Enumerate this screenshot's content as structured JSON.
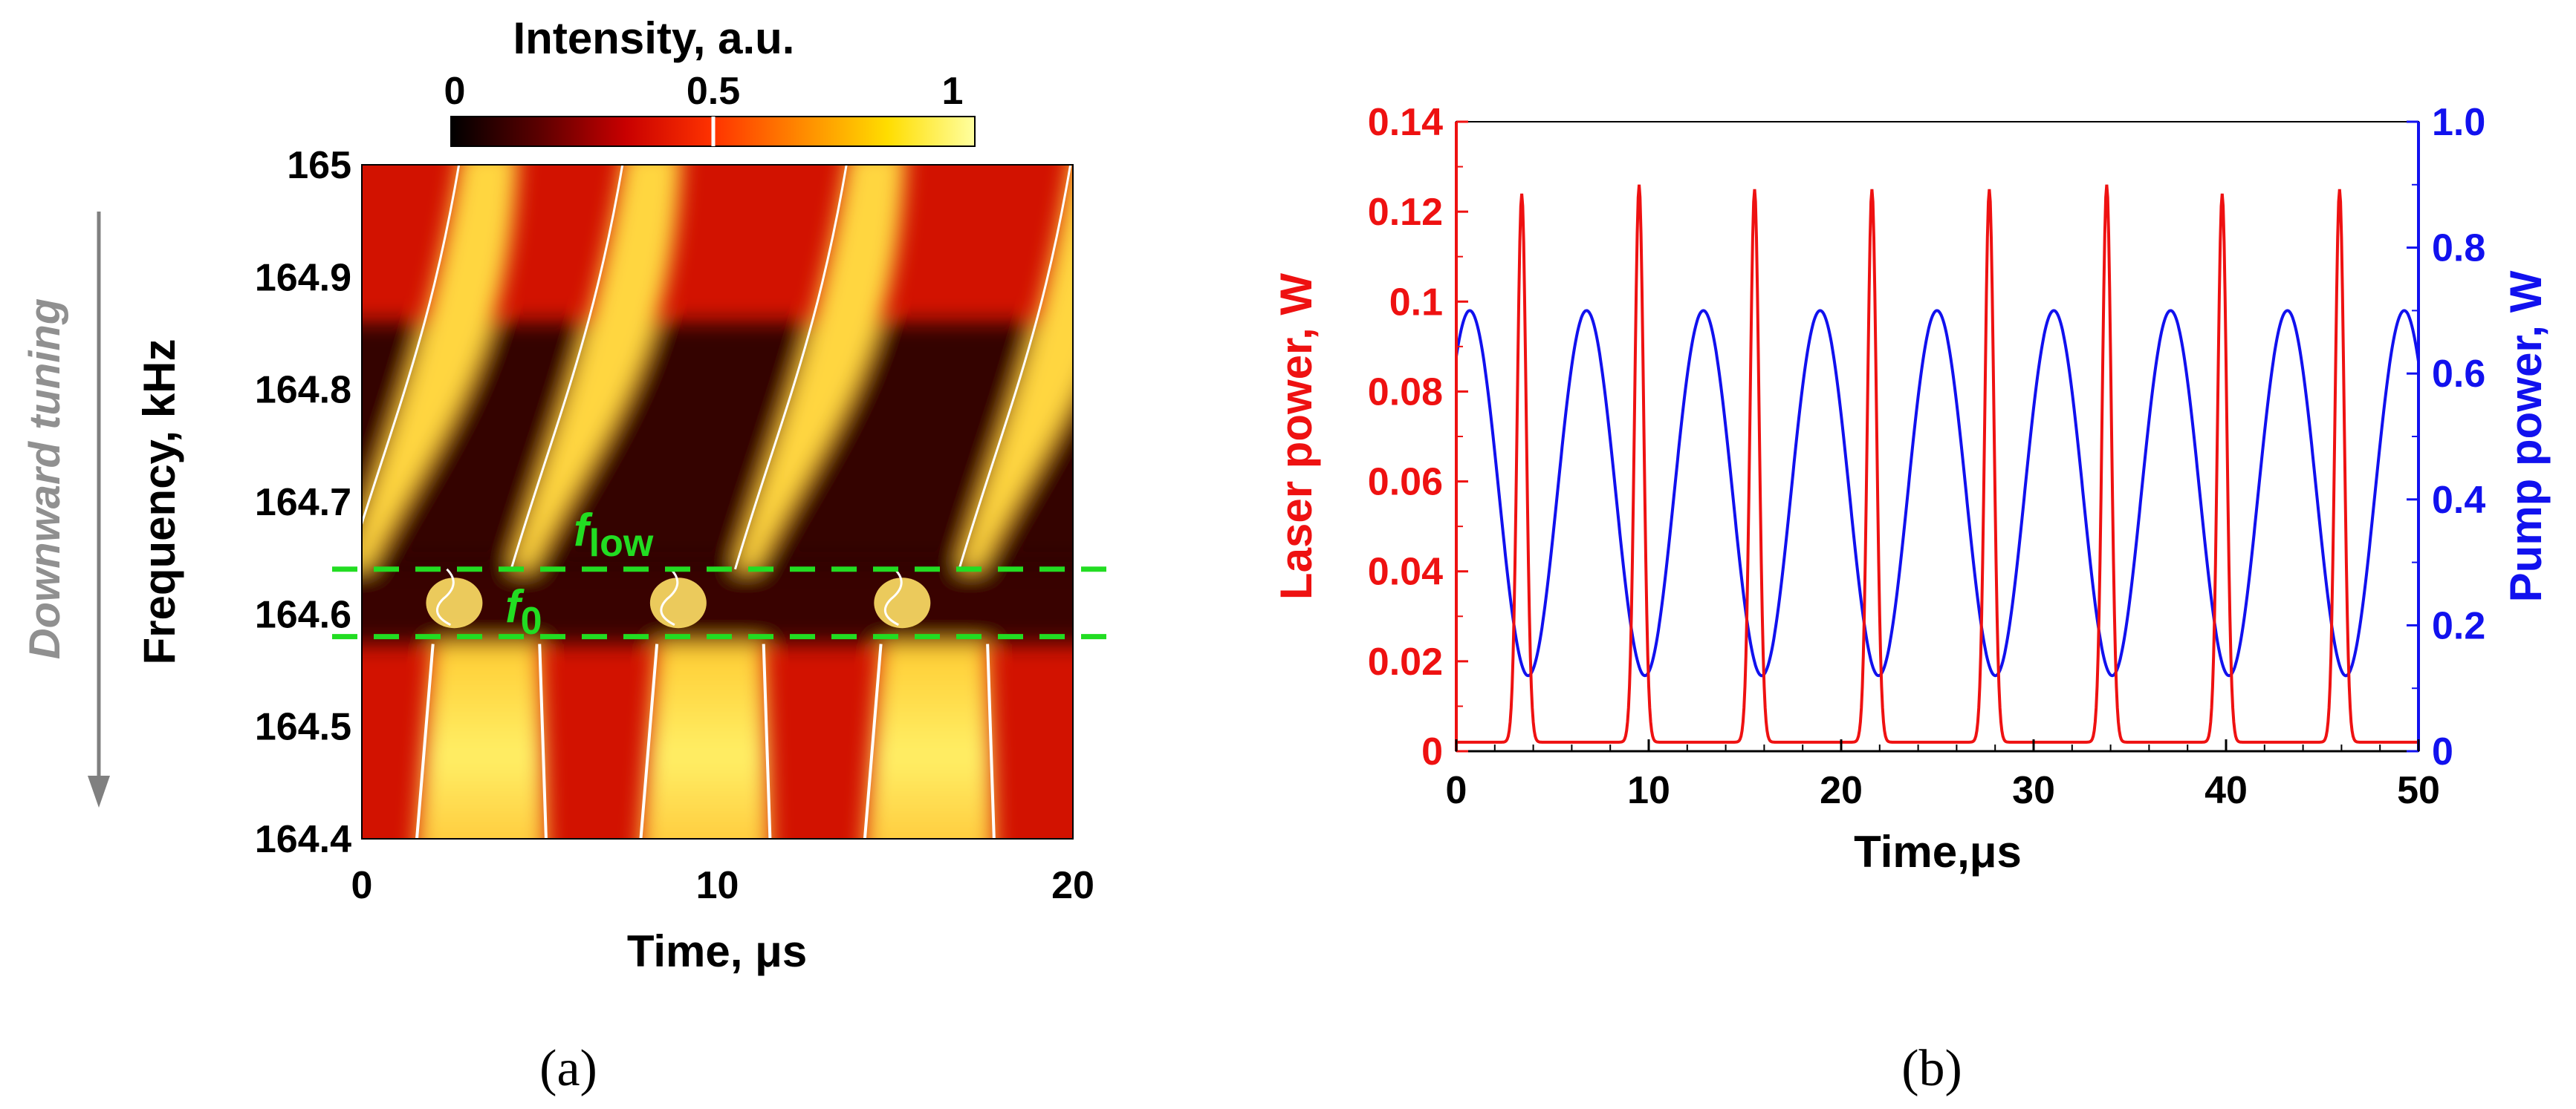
{
  "chart_data": [
    {
      "type": "heatmap",
      "panel_label": "(a)",
      "colorbar": {
        "title": "Intensity, a.u.",
        "ticks": [
          "0",
          "0.5",
          "1"
        ],
        "range": [
          0,
          1
        ],
        "colors": [
          "#000000",
          "#5a0000",
          "#c80000",
          "#ff3300",
          "#ff8800",
          "#ffdd00",
          "#ffffa0"
        ]
      },
      "xlabel": "Time, μs",
      "ylabel": "Frequency, kHz",
      "side_label": "Downward tuning",
      "xlim": [
        0,
        20
      ],
      "ylim": [
        164.4,
        165
      ],
      "xticks": [
        "0",
        "10",
        "20"
      ],
      "yticks": [
        "164.4",
        "164.5",
        "164.6",
        "164.7",
        "164.8",
        "164.9",
        "165"
      ],
      "period_us": 6.3,
      "first_transition_us": 2.6,
      "markers": [
        {
          "name": "f_low",
          "label_main": "f",
          "label_sub": "low",
          "freq_khz": 164.64,
          "color": "#22dd22"
        },
        {
          "name": "f_0",
          "label_main": "f",
          "label_sub": "0",
          "freq_khz": 164.58,
          "color": "#22dd22"
        }
      ]
    },
    {
      "type": "line",
      "panel_label": "(b)",
      "xlabel": "Time,μs",
      "xlim": [
        0,
        50
      ],
      "xticks": [
        "0",
        "10",
        "20",
        "30",
        "40",
        "50"
      ],
      "series": [
        {
          "name": "Laser power",
          "axis": "left",
          "ylabel": "Laser power, W",
          "color": "#ee1111",
          "ylim": [
            0,
            0.14
          ],
          "yticks": [
            "0",
            "0.02",
            "0.04",
            "0.06",
            "0.08",
            "0.1",
            "0.12",
            "0.14"
          ],
          "baseline": 0.002,
          "pulse_width_us": 0.33,
          "peaks": [
            {
              "t": 3.4,
              "value": 0.124
            },
            {
              "t": 9.5,
              "value": 0.126
            },
            {
              "t": 15.5,
              "value": 0.125
            },
            {
              "t": 21.6,
              "value": 0.125
            },
            {
              "t": 27.7,
              "value": 0.125
            },
            {
              "t": 33.8,
              "value": 0.126
            },
            {
              "t": 39.8,
              "value": 0.124
            },
            {
              "t": 45.9,
              "value": 0.125
            }
          ]
        },
        {
          "name": "Pump power",
          "axis": "right",
          "ylabel": "Pump power, W",
          "color": "#1111ee",
          "ylim": [
            0,
            1.0
          ],
          "yticks": [
            "0",
            "0.2",
            "0.4",
            "0.6",
            "0.8",
            "1.0"
          ],
          "max": 0.7,
          "min": 0.12,
          "period_us": 6.07,
          "maxima_t": [
            0.7,
            6.8,
            12.8,
            18.9,
            25.0,
            31.0,
            37.1,
            43.2,
            49.2
          ],
          "minima_t": [
            3.75,
            9.85,
            15.85,
            21.95,
            28.05,
            34.05,
            40.15,
            46.25
          ]
        }
      ]
    }
  ]
}
